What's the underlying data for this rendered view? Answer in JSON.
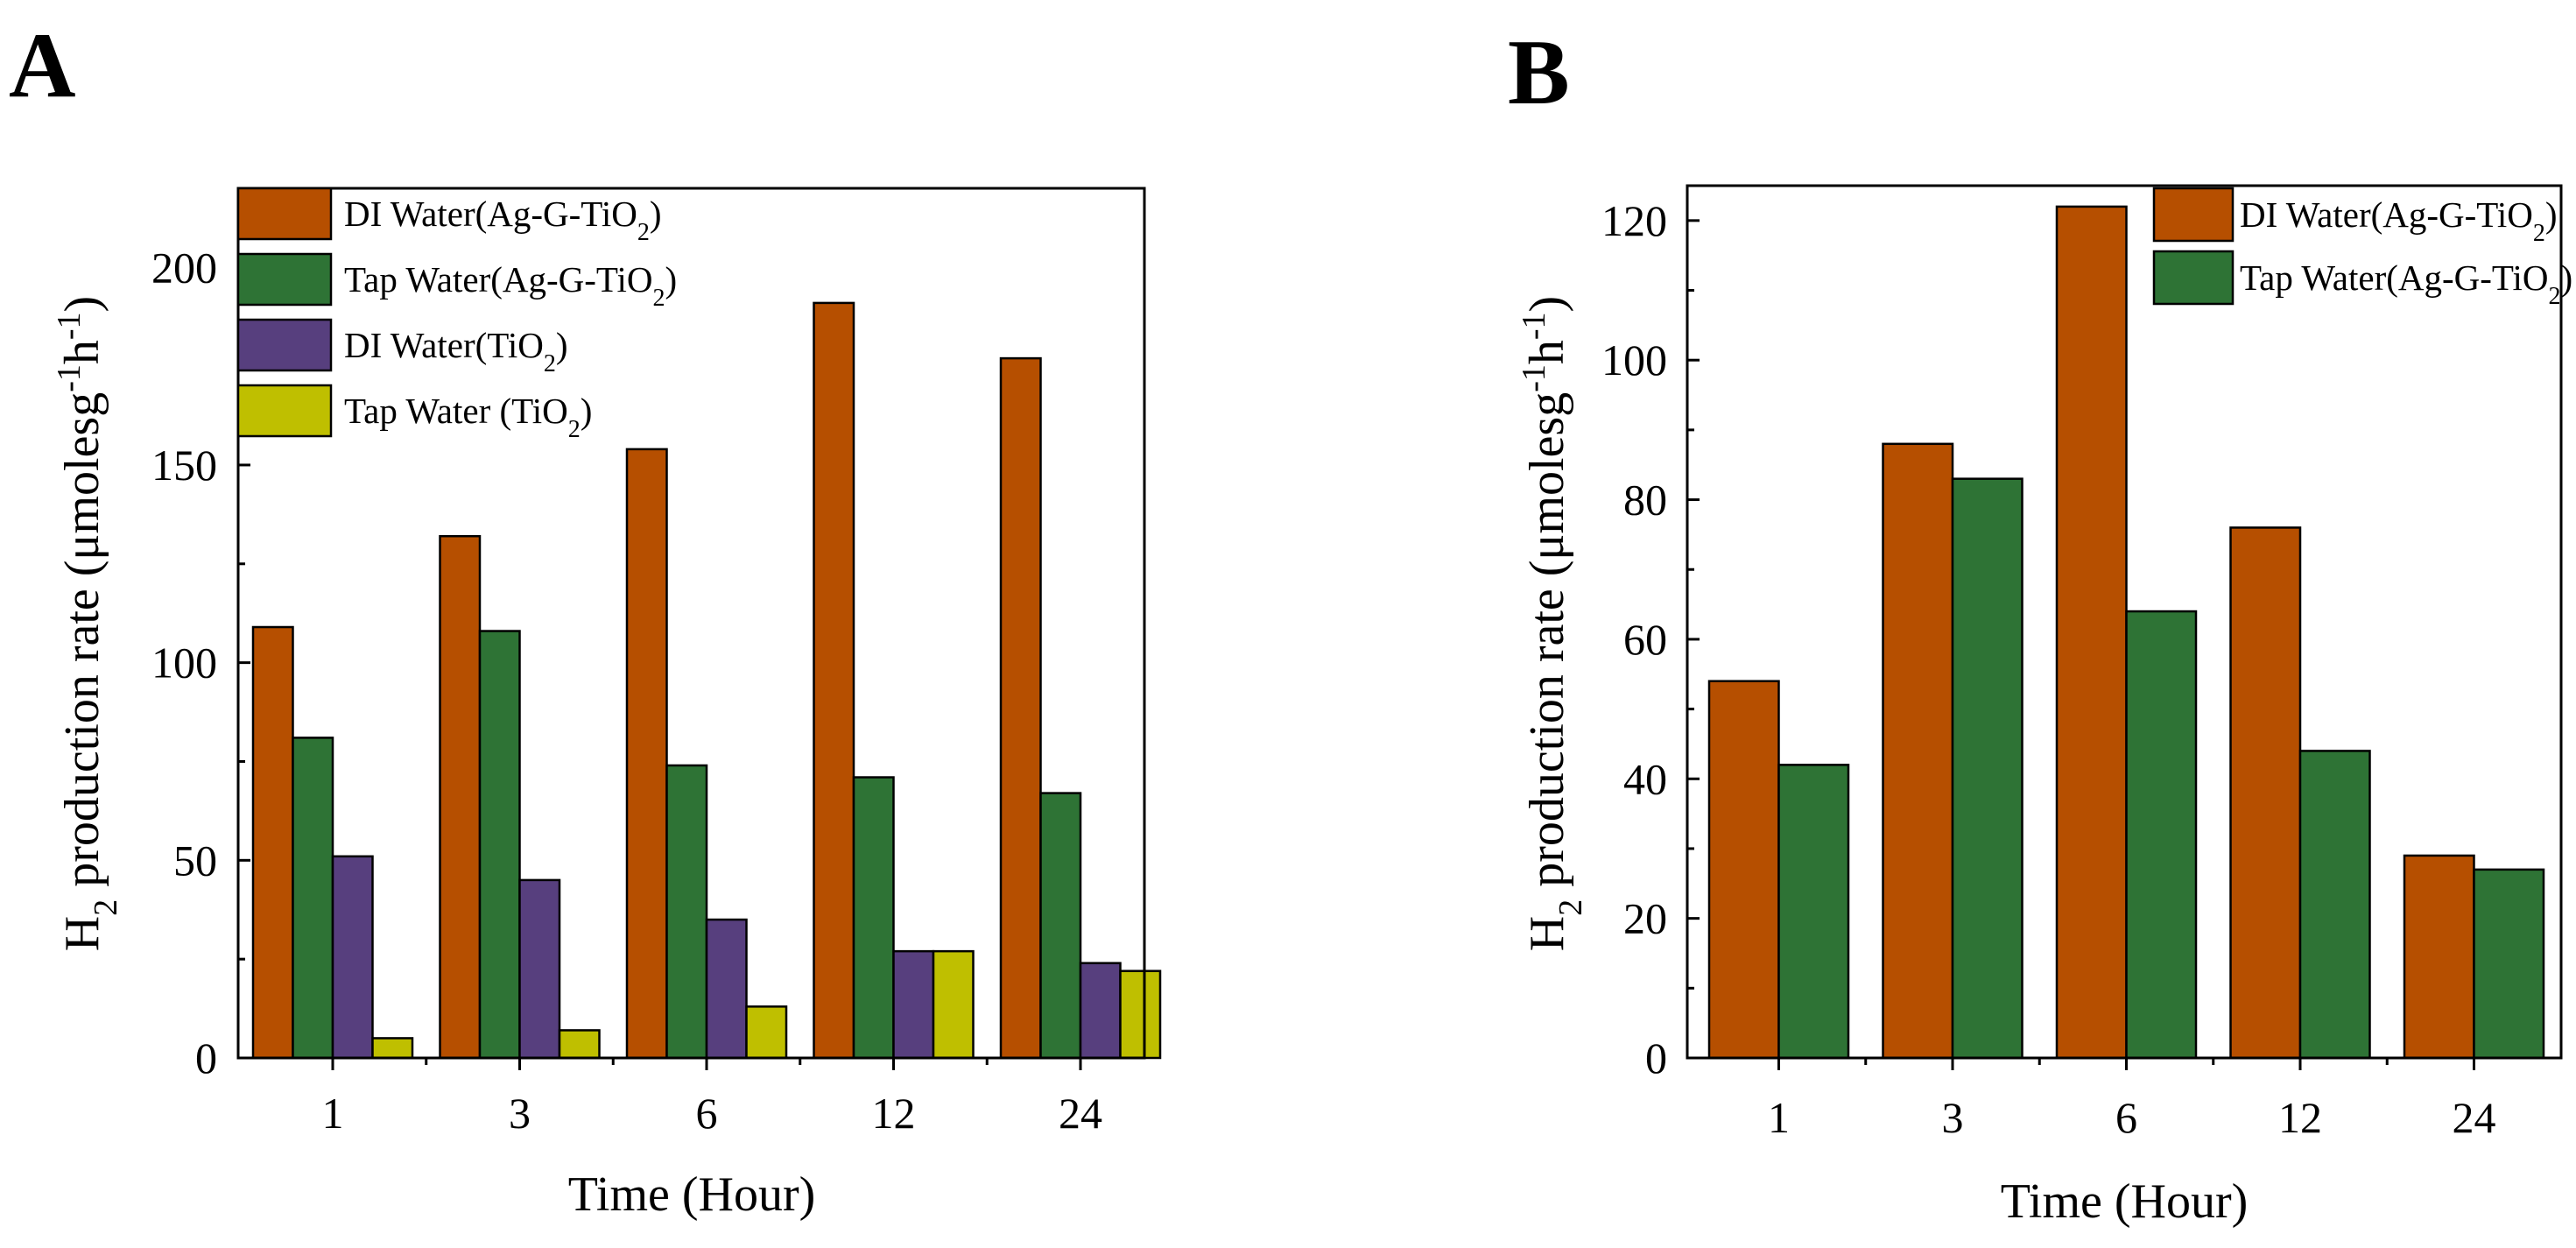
{
  "colors": {
    "di_ag": "#B64F00",
    "tap_ag": "#2E7335",
    "di_tio2": "#573F7E",
    "tap_tio2": "#BFBF00"
  },
  "chart_data": [
    {
      "panel": "A",
      "type": "bar",
      "categories": [
        "1",
        "3",
        "6",
        "12",
        "24"
      ],
      "xlabel": "Time (Hour)",
      "ylabel": {
        "pre": "H",
        "pre_sub": "2",
        "main": " production rate (μmolesg",
        "sup1": "-1",
        "mid": "h",
        "sup2": "-1",
        "post": ")"
      },
      "ylim": [
        0,
        220
      ],
      "yticks": [
        "0",
        "50",
        "100",
        "150",
        "200"
      ],
      "legend_position": "top-left",
      "series": [
        {
          "name": "DI Water(Ag-G-TiO",
          "sub": "2",
          "close": ")",
          "color_key": "di_ag",
          "values": [
            109,
            132,
            154,
            191,
            177
          ]
        },
        {
          "name": "Tap Water(Ag-G-TiO",
          "sub": "2",
          "close": ")",
          "color_key": "tap_ag",
          "values": [
            81,
            108,
            74,
            71,
            67
          ]
        },
        {
          "name": "DI Water(TiO",
          "sub": "2",
          "close": ")",
          "color_key": "di_tio2",
          "values": [
            51,
            45,
            35,
            27,
            24
          ]
        },
        {
          "name": "Tap Water (TiO",
          "sub": "2",
          "close": ")",
          "color_key": "tap_tio2",
          "values": [
            5,
            7,
            13,
            27,
            22
          ]
        }
      ]
    },
    {
      "panel": "B",
      "type": "bar",
      "categories": [
        "1",
        "3",
        "6",
        "12",
        "24"
      ],
      "xlabel": "Time (Hour)",
      "ylabel": {
        "pre": "H",
        "pre_sub": "2",
        "main": " production rate (μmolesg",
        "sup1": "-1",
        "mid": "h",
        "sup2": "-1",
        "post": ")"
      },
      "ylim": [
        0,
        125
      ],
      "yticks": [
        "0",
        "20",
        "40",
        "60",
        "80",
        "100",
        "120"
      ],
      "legend_position": "top-right",
      "series": [
        {
          "name": "DI Water(Ag-G-TiO",
          "sub": "2",
          "close": ")",
          "color_key": "di_ag",
          "values": [
            54,
            88,
            122,
            76,
            29
          ]
        },
        {
          "name": "Tap Water(Ag-G-TiO",
          "sub": "2",
          "close": ")",
          "color_key": "tap_ag",
          "values": [
            42,
            83,
            64,
            44,
            27
          ]
        }
      ]
    }
  ]
}
